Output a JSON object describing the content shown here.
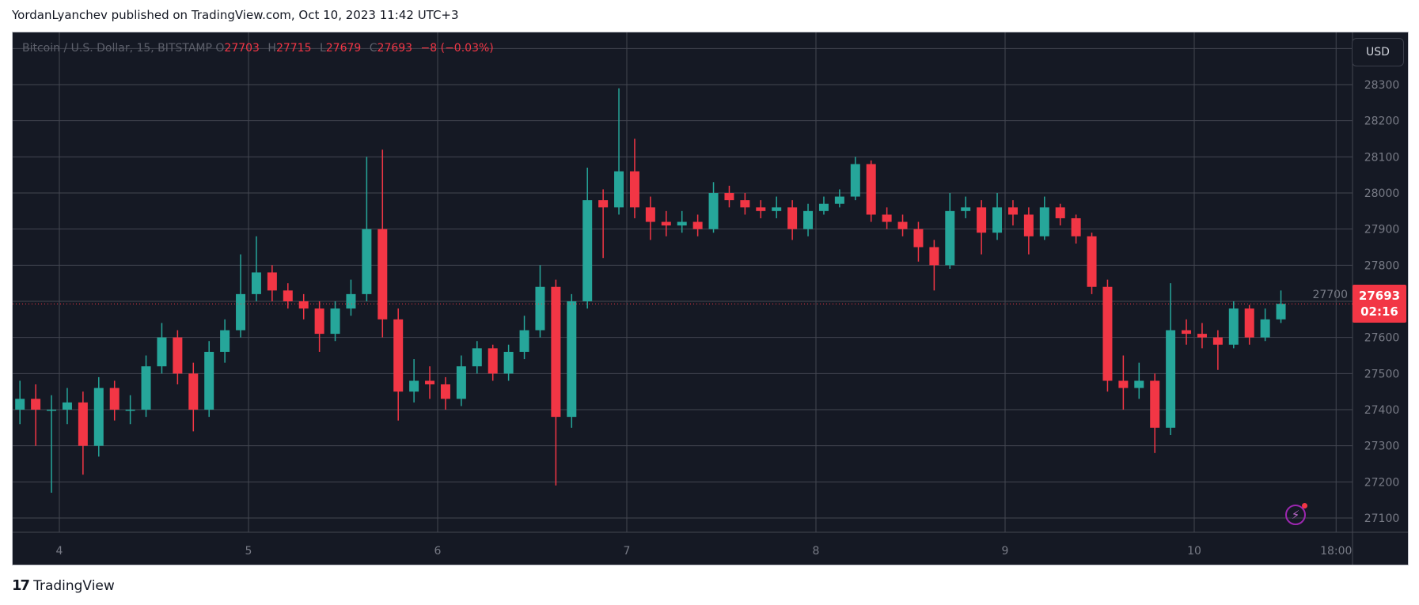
{
  "header": {
    "text": "YordanLyanchev published on TradingView.com, Oct 10, 2023 11:42 UTC+3"
  },
  "legend": {
    "symbol": "Bitcoin / U.S. Dollar, 15, BITSTAMP",
    "o_label": "O",
    "o": "27703",
    "h_label": "H",
    "h": "27715",
    "l_label": "L",
    "l": "27679",
    "c_label": "C",
    "c": "27693",
    "change": "−8 (−0.03%)"
  },
  "currency_button": "USD",
  "price_tag": {
    "price": "27693",
    "countdown": "02:16"
  },
  "alert_icon": "lightning-bolt-icon",
  "footer": {
    "logo_text": "TradingView"
  },
  "colors": {
    "background": "#151924",
    "up": "#26a69a",
    "down": "#f23645",
    "grid": "#434651",
    "accent_alert": "#9c27b0"
  },
  "chart_data": {
    "type": "candlestick",
    "symbol": "BTCUSD",
    "interval": "15",
    "exchange": "BITSTAMP",
    "candle_period_hours_approx": 2,
    "first_candle_start": "Oct 3 18:00",
    "ylim": [
      27050,
      28450
    ],
    "y_ticks": [
      27100,
      27200,
      27300,
      27400,
      27500,
      27600,
      27700,
      27800,
      27900,
      28000,
      28100,
      28200,
      28300
    ],
    "x_ticks": [
      "4",
      "5",
      "6",
      "7",
      "8",
      "9",
      "10",
      "18:00"
    ],
    "grid": true,
    "last_price": 27693,
    "ohlc": [
      [
        27400,
        27480,
        27360,
        27430
      ],
      [
        27430,
        27470,
        27300,
        27400
      ],
      [
        27400,
        27440,
        27170,
        27400
      ],
      [
        27400,
        27460,
        27360,
        27420
      ],
      [
        27420,
        27450,
        27220,
        27300
      ],
      [
        27300,
        27490,
        27270,
        27460
      ],
      [
        27460,
        27480,
        27370,
        27400
      ],
      [
        27400,
        27440,
        27360,
        27400
      ],
      [
        27400,
        27550,
        27380,
        27520
      ],
      [
        27520,
        27640,
        27500,
        27600
      ],
      [
        27600,
        27620,
        27470,
        27500
      ],
      [
        27500,
        27530,
        27340,
        27400
      ],
      [
        27400,
        27590,
        27380,
        27560
      ],
      [
        27560,
        27650,
        27530,
        27620
      ],
      [
        27620,
        27830,
        27600,
        27720
      ],
      [
        27720,
        27880,
        27700,
        27780
      ],
      [
        27780,
        27800,
        27700,
        27730
      ],
      [
        27730,
        27750,
        27680,
        27700
      ],
      [
        27700,
        27720,
        27650,
        27680
      ],
      [
        27680,
        27700,
        27560,
        27610
      ],
      [
        27610,
        27700,
        27590,
        27680
      ],
      [
        27680,
        27760,
        27660,
        27720
      ],
      [
        27720,
        28100,
        27700,
        27900
      ],
      [
        27900,
        28120,
        27600,
        27650
      ],
      [
        27650,
        27680,
        27370,
        27450
      ],
      [
        27450,
        27540,
        27420,
        27480
      ],
      [
        27480,
        27520,
        27430,
        27470
      ],
      [
        27470,
        27490,
        27400,
        27430
      ],
      [
        27430,
        27550,
        27410,
        27520
      ],
      [
        27520,
        27590,
        27500,
        27570
      ],
      [
        27570,
        27580,
        27480,
        27500
      ],
      [
        27500,
        27580,
        27480,
        27560
      ],
      [
        27560,
        27660,
        27540,
        27620
      ],
      [
        27620,
        27800,
        27600,
        27740
      ],
      [
        27740,
        27760,
        27190,
        27380
      ],
      [
        27380,
        27720,
        27350,
        27700
      ],
      [
        27700,
        28070,
        27680,
        27980
      ],
      [
        27980,
        28010,
        27820,
        27960
      ],
      [
        27960,
        28290,
        27940,
        28060
      ],
      [
        28060,
        28150,
        27930,
        27960
      ],
      [
        27960,
        27990,
        27870,
        27920
      ],
      [
        27920,
        27950,
        27880,
        27910
      ],
      [
        27910,
        27950,
        27890,
        27920
      ],
      [
        27920,
        27940,
        27880,
        27900
      ],
      [
        27900,
        28030,
        27890,
        28000
      ],
      [
        28000,
        28020,
        27960,
        27980
      ],
      [
        27980,
        28000,
        27940,
        27960
      ],
      [
        27960,
        27980,
        27930,
        27950
      ],
      [
        27950,
        27990,
        27930,
        27960
      ],
      [
        27960,
        27980,
        27870,
        27900
      ],
      [
        27900,
        27970,
        27880,
        27950
      ],
      [
        27950,
        27990,
        27940,
        27970
      ],
      [
        27970,
        28010,
        27960,
        27990
      ],
      [
        27990,
        28100,
        27980,
        28080
      ],
      [
        28080,
        28090,
        27920,
        27940
      ],
      [
        27940,
        27960,
        27900,
        27920
      ],
      [
        27920,
        27940,
        27880,
        27900
      ],
      [
        27900,
        27920,
        27810,
        27850
      ],
      [
        27850,
        27870,
        27730,
        27800
      ],
      [
        27800,
        28000,
        27790,
        27950
      ],
      [
        27950,
        27990,
        27930,
        27960
      ],
      [
        27960,
        27980,
        27830,
        27890
      ],
      [
        27890,
        28000,
        27870,
        27960
      ],
      [
        27960,
        27980,
        27910,
        27940
      ],
      [
        27940,
        27960,
        27830,
        27880
      ],
      [
        27880,
        27990,
        27870,
        27960
      ],
      [
        27960,
        27970,
        27910,
        27930
      ],
      [
        27930,
        27940,
        27860,
        27880
      ],
      [
        27880,
        27890,
        27720,
        27740
      ],
      [
        27740,
        27760,
        27450,
        27480
      ],
      [
        27480,
        27550,
        27400,
        27460
      ],
      [
        27460,
        27530,
        27430,
        27480
      ],
      [
        27480,
        27500,
        27280,
        27350
      ],
      [
        27350,
        27750,
        27330,
        27620
      ],
      [
        27620,
        27650,
        27580,
        27610
      ],
      [
        27610,
        27640,
        27570,
        27600
      ],
      [
        27600,
        27620,
        27510,
        27580
      ],
      [
        27580,
        27700,
        27570,
        27680
      ],
      [
        27680,
        27690,
        27580,
        27600
      ],
      [
        27600,
        27680,
        27590,
        27650
      ],
      [
        27650,
        27730,
        27640,
        27693
      ]
    ]
  }
}
